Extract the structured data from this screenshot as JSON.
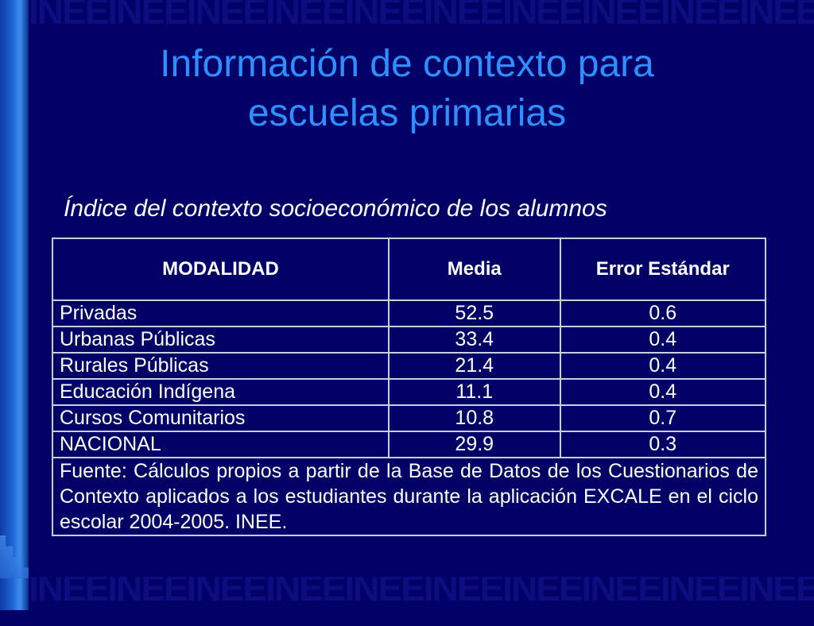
{
  "slide": {
    "title_line1": "Información de contexto para",
    "title_line2": "escuelas primarias",
    "subtitle": "Índice del contexto socioeconómico de los alumnos",
    "watermark": "INEE"
  },
  "table": {
    "headers": [
      "MODALIDAD",
      "Media",
      "Error Estándar"
    ],
    "rows": [
      {
        "modalidad": "Privadas",
        "media": "52.5",
        "error": "0.6"
      },
      {
        "modalidad": "Urbanas Públicas",
        "media": "33.4",
        "error": "0.4"
      },
      {
        "modalidad": "Rurales Públicas",
        "media": "21.4",
        "error": "0.4"
      },
      {
        "modalidad": "Educación Indígena",
        "media": "11.1",
        "error": "0.4"
      },
      {
        "modalidad": "Cursos Comunitarios",
        "media": "10.8",
        "error": "0.7"
      },
      {
        "modalidad": "NACIONAL",
        "media": "29.9",
        "error": "0.3"
      }
    ],
    "footnote": "Fuente: Cálculos propios a partir de la Base de Datos de los Cuestionarios de Contexto aplicados a los estudiantes durante la aplicación EXCALE en el ciclo escolar 2004-2005. INEE."
  },
  "colors": {
    "background": "#000066",
    "title": "#2e8fff",
    "text": "#ffffff",
    "border": "#c8cde8"
  }
}
